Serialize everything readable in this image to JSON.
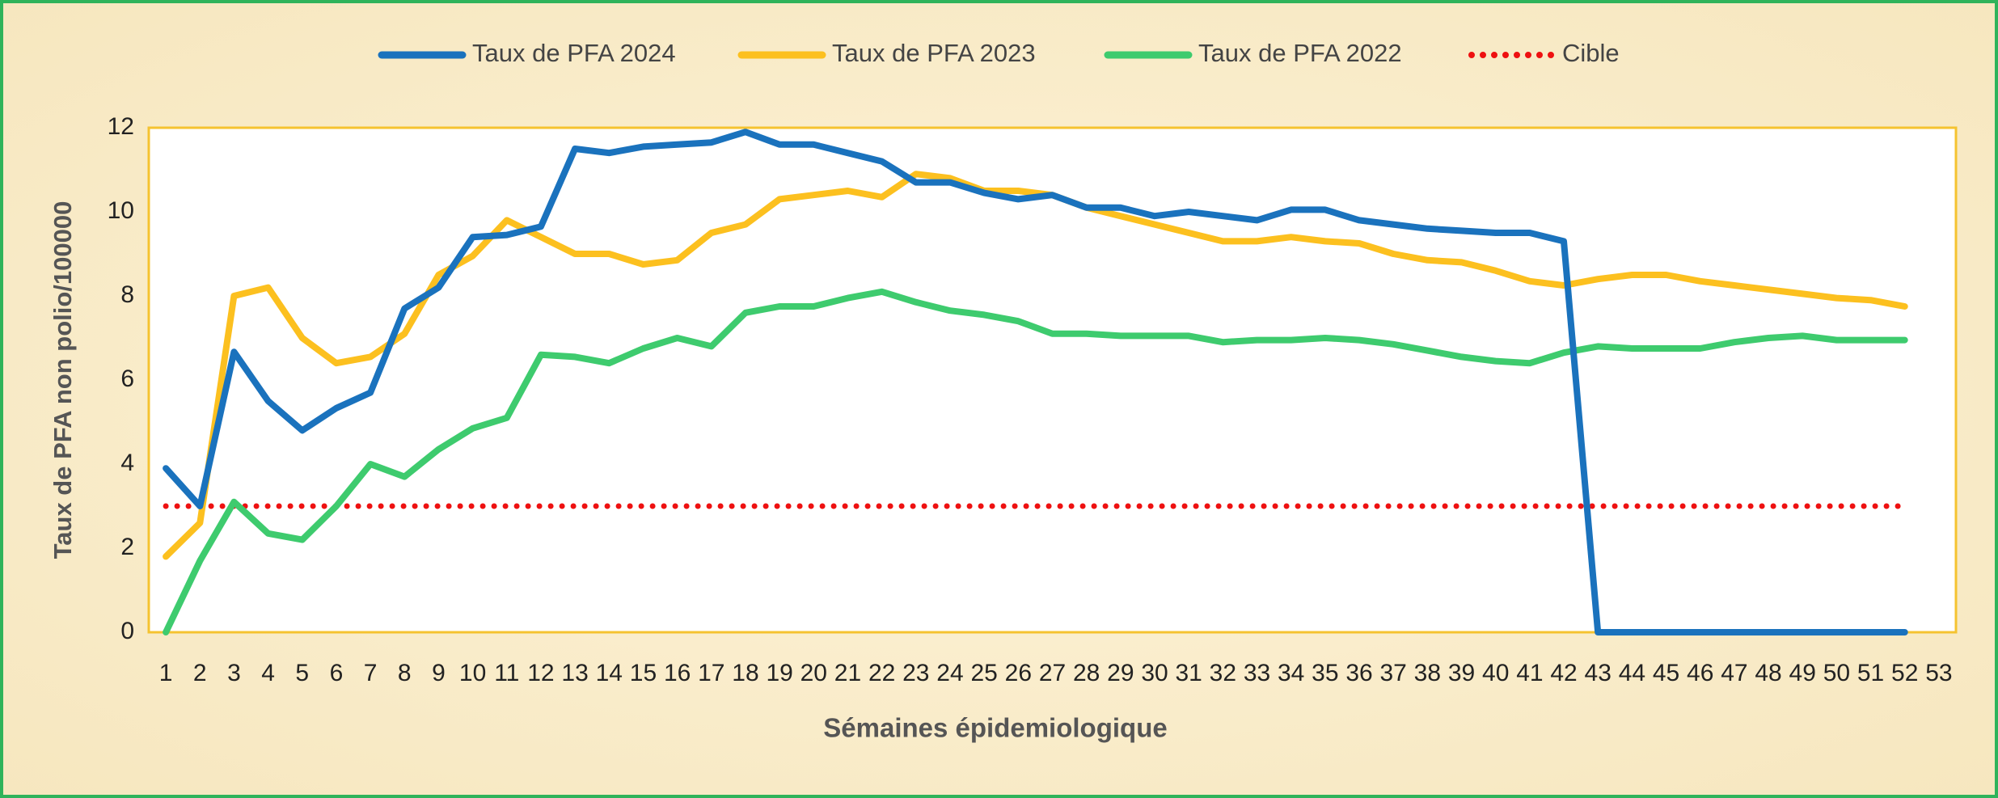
{
  "chart_data": {
    "type": "line",
    "x_label": "Sémaines épidemiologique",
    "y_label": "Taux de PFA non polio/100000",
    "categories": [
      1,
      2,
      3,
      4,
      5,
      6,
      7,
      8,
      9,
      10,
      11,
      12,
      13,
      14,
      15,
      16,
      17,
      18,
      19,
      20,
      21,
      22,
      23,
      24,
      25,
      26,
      27,
      28,
      29,
      30,
      31,
      32,
      33,
      34,
      35,
      36,
      37,
      38,
      39,
      40,
      41,
      42,
      43,
      44,
      45,
      46,
      47,
      48,
      49,
      50,
      51,
      52,
      53
    ],
    "series": [
      {
        "name": "Taux de PFA 2024",
        "color": "#1a72bd",
        "style": "solid",
        "values": [
          3.9,
          3.0,
          6.67,
          5.5,
          4.8,
          5.33,
          5.7,
          7.7,
          8.2,
          9.4,
          9.45,
          9.65,
          11.5,
          11.4,
          11.55,
          11.6,
          11.65,
          11.9,
          11.6,
          11.6,
          11.4,
          11.2,
          10.7,
          10.7,
          10.45,
          10.3,
          10.4,
          10.1,
          10.1,
          9.9,
          10.0,
          9.9,
          9.8,
          10.05,
          10.05,
          9.8,
          9.7,
          9.6,
          9.55,
          9.5,
          9.5,
          9.3,
          0,
          0,
          0,
          0,
          0,
          0,
          0,
          0,
          0,
          0,
          null
        ]
      },
      {
        "name": "Taux de PFA 2023",
        "color": "#fcc01f",
        "style": "solid",
        "values": [
          1.8,
          2.6,
          8.0,
          8.2,
          7.0,
          6.4,
          6.55,
          7.1,
          8.5,
          8.95,
          9.8,
          9.4,
          9.0,
          9.0,
          8.75,
          8.85,
          9.5,
          9.7,
          10.3,
          10.4,
          10.5,
          10.35,
          10.9,
          10.8,
          10.5,
          10.5,
          10.4,
          10.1,
          9.9,
          9.7,
          9.5,
          9.3,
          9.3,
          9.4,
          9.3,
          9.25,
          9.0,
          8.85,
          8.8,
          8.6,
          8.35,
          8.25,
          8.4,
          8.5,
          8.5,
          8.35,
          8.25,
          8.15,
          8.05,
          7.95,
          7.9,
          7.75,
          null
        ]
      },
      {
        "name": "Taux de PFA 2022",
        "color": "#3ecb6e",
        "style": "solid",
        "values": [
          0,
          1.7,
          3.1,
          2.35,
          2.2,
          3.0,
          4.0,
          3.7,
          4.35,
          4.85,
          5.1,
          6.6,
          6.55,
          6.4,
          6.75,
          7.0,
          6.8,
          7.6,
          7.75,
          7.75,
          7.95,
          8.1,
          7.85,
          7.65,
          7.55,
          7.4,
          7.1,
          7.1,
          7.05,
          7.05,
          7.05,
          6.9,
          6.95,
          6.95,
          7.0,
          6.95,
          6.85,
          6.7,
          6.55,
          6.45,
          6.4,
          6.65,
          6.8,
          6.75,
          6.75,
          6.75,
          6.9,
          7.0,
          7.05,
          6.95,
          6.95,
          6.95,
          null
        ]
      },
      {
        "name": "Cible",
        "color": "#ee1111",
        "style": "dotted",
        "values": [
          3,
          3,
          3,
          3,
          3,
          3,
          3,
          3,
          3,
          3,
          3,
          3,
          3,
          3,
          3,
          3,
          3,
          3,
          3,
          3,
          3,
          3,
          3,
          3,
          3,
          3,
          3,
          3,
          3,
          3,
          3,
          3,
          3,
          3,
          3,
          3,
          3,
          3,
          3,
          3,
          3,
          3,
          3,
          3,
          3,
          3,
          3,
          3,
          3,
          3,
          3,
          3,
          null
        ]
      }
    ],
    "ylim": [
      0,
      12
    ],
    "yticks": [
      0,
      2,
      4,
      6,
      8,
      10,
      12
    ],
    "grid": false,
    "legend": "top"
  }
}
